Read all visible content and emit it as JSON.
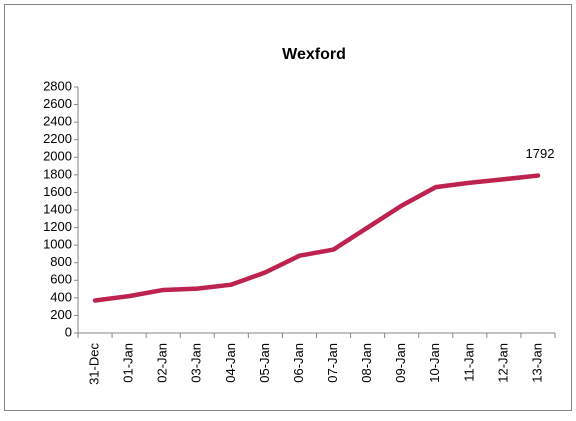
{
  "chart_data": {
    "type": "line",
    "title": "Wexford",
    "categories": [
      "31-Dec",
      "01-Jan",
      "02-Jan",
      "03-Jan",
      "04-Jan",
      "05-Jan",
      "06-Jan",
      "07-Jan",
      "08-Jan",
      "09-Jan",
      "10-Jan",
      "11-Jan",
      "12-Jan",
      "13-Jan"
    ],
    "series": [
      {
        "name": "Wexford",
        "color": "#be2350",
        "values": [
          370,
          420,
          490,
          505,
          550,
          690,
          880,
          950,
          1200,
          1450,
          1660,
          1710,
          1750,
          1792
        ]
      }
    ],
    "data_label_index": 13,
    "ylim": [
      0,
      2800
    ],
    "yticks": [
      0,
      200,
      400,
      600,
      800,
      1000,
      1200,
      1400,
      1600,
      1800,
      2000,
      2200,
      2400,
      2600,
      2800
    ],
    "grid": false,
    "legend": false
  }
}
